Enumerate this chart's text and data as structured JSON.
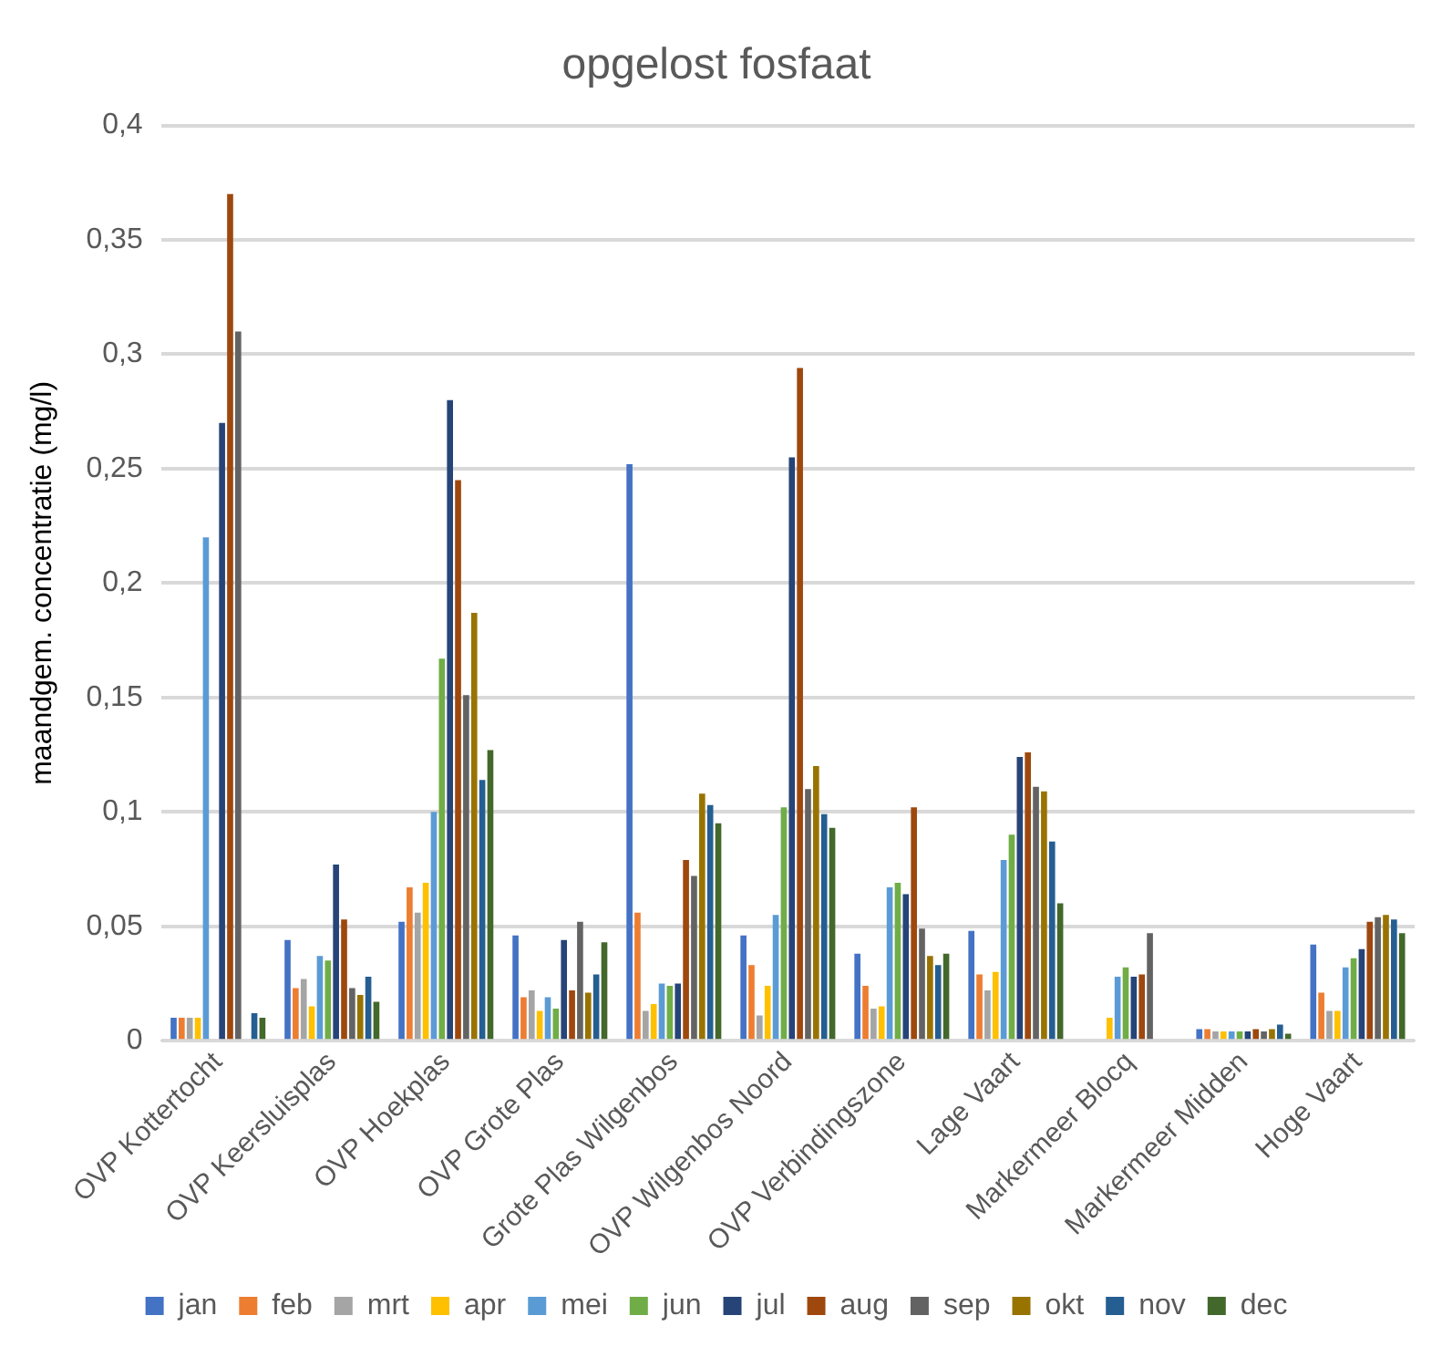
{
  "chart_data": {
    "type": "bar",
    "title": "opgelost fosfaat",
    "ylabel": "maandgem. concentratie (mg/l)",
    "categories": [
      "OVP Kottertocht",
      "OVP Keersluisplas",
      "OVP Hoekplas",
      "OVP Grote Plas",
      "Grote Plas Wilgenbos",
      "OVP Wilgenbos Noord",
      "OVP Verbindingszone",
      "Lage Vaart",
      "Markermeer Blocq",
      "Markermeer Midden",
      "Hoge Vaart"
    ],
    "series": [
      {
        "name": "jan",
        "color": "#4472c4",
        "values": [
          0.01,
          0.044,
          0.052,
          0.046,
          0.252,
          0.046,
          0.038,
          0.048,
          null,
          0.005,
          0.042
        ]
      },
      {
        "name": "feb",
        "color": "#ed7d31",
        "values": [
          0.01,
          0.023,
          0.067,
          0.019,
          0.056,
          0.033,
          0.024,
          0.029,
          null,
          0.005,
          0.021
        ]
      },
      {
        "name": "mrt",
        "color": "#a5a5a5",
        "values": [
          0.01,
          0.027,
          0.056,
          0.022,
          0.013,
          0.011,
          0.014,
          0.022,
          null,
          0.004,
          0.013
        ]
      },
      {
        "name": "apr",
        "color": "#ffc000",
        "values": [
          0.01,
          0.015,
          0.069,
          0.013,
          0.016,
          0.024,
          0.015,
          0.03,
          0.01,
          0.004,
          0.013
        ]
      },
      {
        "name": "mei",
        "color": "#5b9bd5",
        "values": [
          0.22,
          0.037,
          0.1,
          0.019,
          0.025,
          0.055,
          0.067,
          0.079,
          0.028,
          0.004,
          0.032
        ]
      },
      {
        "name": "jun",
        "color": "#70ad47",
        "values": [
          null,
          0.035,
          0.167,
          0.014,
          0.024,
          0.102,
          0.069,
          0.09,
          0.032,
          0.004,
          0.036
        ]
      },
      {
        "name": "jul",
        "color": "#264478",
        "values": [
          0.27,
          0.077,
          0.28,
          0.044,
          0.025,
          0.255,
          0.064,
          0.124,
          0.028,
          0.004,
          0.04
        ]
      },
      {
        "name": "aug",
        "color": "#9e480e",
        "values": [
          0.37,
          0.053,
          0.245,
          0.022,
          0.079,
          0.294,
          0.102,
          0.126,
          0.029,
          0.005,
          0.052
        ]
      },
      {
        "name": "sep",
        "color": "#636363",
        "values": [
          0.31,
          0.023,
          0.151,
          0.052,
          0.072,
          0.11,
          0.049,
          0.111,
          0.047,
          0.004,
          0.054
        ]
      },
      {
        "name": "okt",
        "color": "#997300",
        "values": [
          null,
          0.02,
          0.187,
          0.021,
          0.108,
          0.12,
          0.037,
          0.109,
          null,
          0.005,
          0.055
        ]
      },
      {
        "name": "nov",
        "color": "#255e91",
        "values": [
          0.012,
          0.028,
          0.114,
          0.029,
          0.103,
          0.099,
          0.033,
          0.087,
          null,
          0.007,
          0.053
        ]
      },
      {
        "name": "dec",
        "color": "#43682b",
        "values": [
          0.01,
          0.017,
          0.127,
          0.043,
          0.095,
          0.093,
          0.038,
          0.06,
          null,
          0.003,
          0.047
        ]
      }
    ],
    "ylim": [
      0,
      0.4
    ],
    "yticks": [
      0,
      {
        "value": 0.05,
        "label": "0,05"
      },
      {
        "value": 0.1,
        "label": "0,1"
      },
      {
        "value": 0.15,
        "label": "0,15"
      },
      {
        "value": 0.2,
        "label": "0,2"
      },
      {
        "value": 0.25,
        "label": "0,25"
      },
      {
        "value": 0.3,
        "label": "0,3"
      },
      {
        "value": 0.35,
        "label": "0,35"
      },
      {
        "value": 0.4,
        "label": "0,4"
      }
    ],
    "grid": "y",
    "legend": "bottom"
  }
}
